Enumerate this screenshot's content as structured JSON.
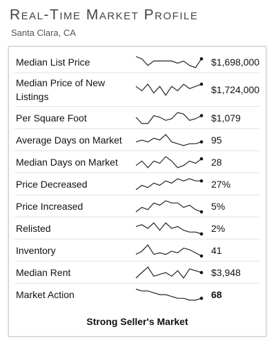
{
  "header": {
    "title": "Real-Time Market Profile",
    "subtitle": "Santa Clara, CA"
  },
  "rows": [
    {
      "label": "Median List Price",
      "value": "$1,698,000",
      "trend": [
        7,
        6,
        3,
        5,
        5,
        5,
        5,
        4,
        5,
        3,
        2,
        6
      ]
    },
    {
      "label": "Median Price of New Listings",
      "value": "$1,724,000",
      "trend": [
        6,
        4,
        7,
        3,
        6,
        2,
        6,
        4,
        7,
        5,
        6,
        7
      ]
    },
    {
      "label": "Per Square Foot",
      "value": "$1,079",
      "trend": [
        6,
        2,
        2,
        7,
        6,
        4,
        5,
        9,
        8,
        4,
        5,
        7
      ]
    },
    {
      "label": "Average Days on Market",
      "value": "95",
      "trend": [
        5,
        6,
        5,
        7,
        6,
        9,
        5,
        4,
        3,
        4,
        4,
        5
      ]
    },
    {
      "label": "Median Days on Market",
      "value": "28",
      "trend": [
        4,
        6,
        3,
        6,
        5,
        8,
        6,
        3,
        4,
        6,
        5,
        7
      ]
    },
    {
      "label": "Price Decreased",
      "value": "27%",
      "trend": [
        3,
        5,
        4,
        6,
        5,
        7,
        6,
        8,
        7,
        8,
        7,
        7
      ]
    },
    {
      "label": "Price Increased",
      "value": "5%",
      "trend": [
        3,
        5,
        4,
        7,
        6,
        8,
        7,
        7,
        5,
        6,
        4,
        3
      ]
    },
    {
      "label": "Relisted",
      "value": "2%",
      "trend": [
        5,
        6,
        4,
        7,
        3,
        7,
        4,
        5,
        3,
        2,
        2,
        1
      ]
    },
    {
      "label": "Inventory",
      "value": "41",
      "trend": [
        3,
        5,
        9,
        3,
        4,
        3,
        5,
        4,
        7,
        6,
        4,
        2
      ]
    },
    {
      "label": "Median Rent",
      "value": "$3,948",
      "trend": [
        3,
        6,
        9,
        4,
        5,
        6,
        4,
        7,
        3,
        8,
        7,
        6
      ]
    },
    {
      "label": "Market Action",
      "value": "68",
      "bold": true,
      "trend": [
        9,
        8,
        8,
        7,
        6,
        6,
        5,
        4,
        4,
        3,
        3,
        4
      ]
    }
  ],
  "footer": "Strong Seller's Market"
}
